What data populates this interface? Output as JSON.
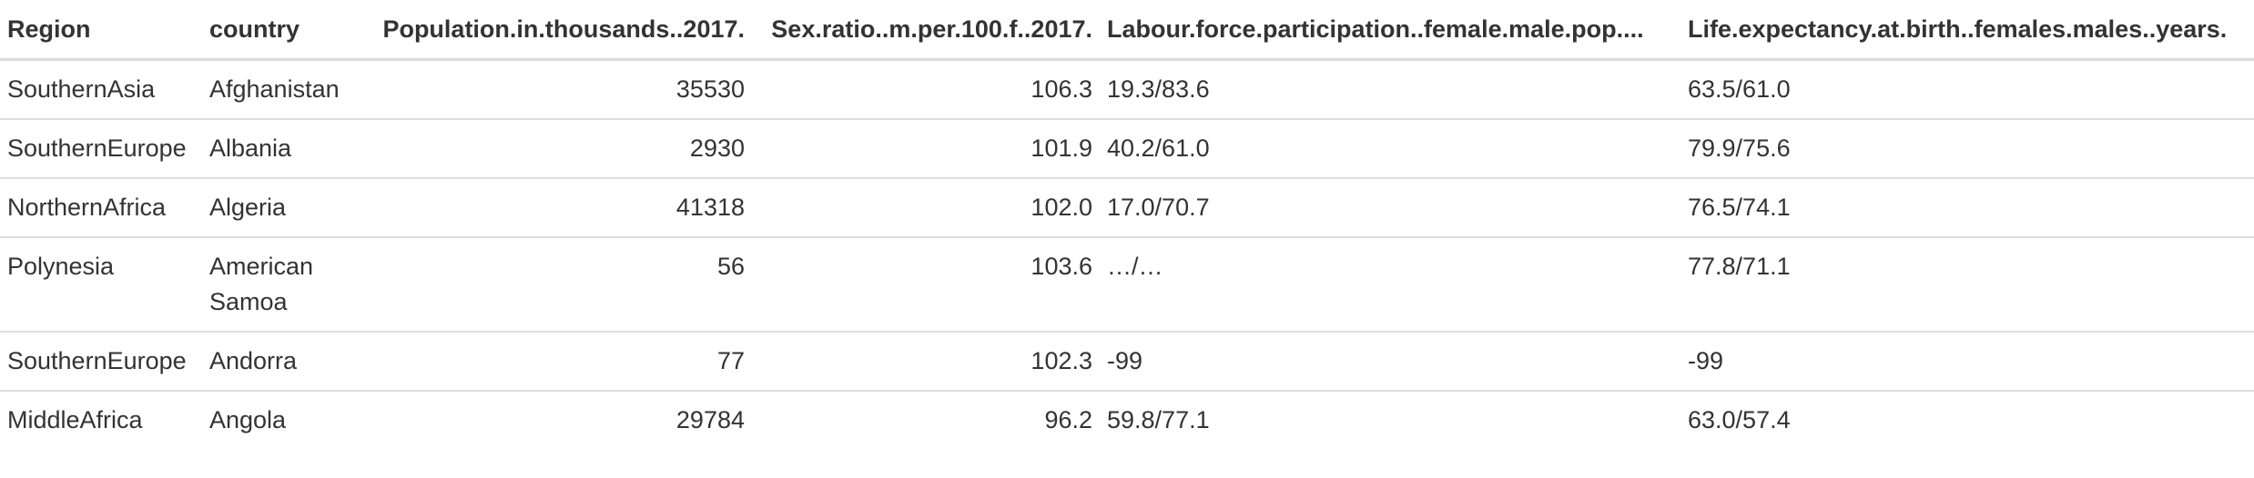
{
  "table": {
    "columns": [
      "Region",
      "country",
      "Population.in.thousands..2017.",
      "Sex.ratio..m.per.100.f..2017.",
      "Labour.force.participation..female.male.pop....",
      "Life.expectancy.at.birth..females.males..years."
    ],
    "rows": [
      [
        "SouthernAsia",
        "Afghanistan",
        "35530",
        "106.3",
        "19.3/83.6",
        "63.5/61.0"
      ],
      [
        "SouthernEurope",
        "Albania",
        "2930",
        "101.9",
        "40.2/61.0",
        "79.9/75.6"
      ],
      [
        "NorthernAfrica",
        "Algeria",
        "41318",
        "102.0",
        "17.0/70.7",
        "76.5/74.1"
      ],
      [
        "Polynesia",
        "American Samoa",
        "56",
        "103.6",
        "…/…",
        "77.8/71.1"
      ],
      [
        "SouthernEurope",
        "Andorra",
        "77",
        "102.3",
        "-99",
        "-99"
      ],
      [
        "MiddleAfrica",
        "Angola",
        "29784",
        "96.2",
        "59.8/77.1",
        "63.0/57.4"
      ]
    ]
  }
}
